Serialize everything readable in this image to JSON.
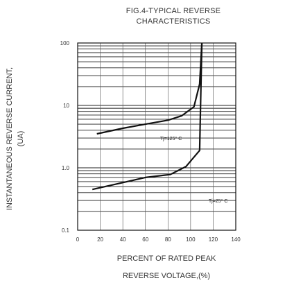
{
  "chart_data": {
    "type": "line",
    "title_line1": "FIG.4-TYPICAL REVERSE",
    "title_line2": "CHARACTERISTICS",
    "xlabel_line1": "PERCENT OF RATED PEAK",
    "xlabel_line2": "REVERSE VOLTAGE,(%)",
    "ylabel_line1": "INSTANTANEOUS REVERSE CURRENT,",
    "ylabel_line2": "(UA)",
    "x_scale": "linear",
    "y_scale": "log",
    "xlim": [
      0,
      140
    ],
    "ylim": [
      0.1,
      100
    ],
    "x_ticks": [
      0,
      20,
      40,
      60,
      80,
      100,
      120,
      140
    ],
    "y_ticks": [
      0.1,
      1.0,
      10,
      100
    ],
    "y_tick_labels": [
      "0.1",
      "1.0",
      "10",
      "100"
    ],
    "grid": true,
    "series": [
      {
        "annotation": "Tj=125° C",
        "x": [
          17,
          40,
          60,
          80,
          92,
          103,
          108,
          110
        ],
        "y": [
          3.5,
          4.3,
          5.0,
          5.8,
          6.8,
          9.5,
          22,
          100
        ]
      },
      {
        "annotation": "Tj=25° C",
        "x": [
          13,
          40,
          60,
          82,
          96,
          108,
          110
        ],
        "y": [
          0.45,
          0.58,
          0.7,
          0.78,
          1.05,
          1.9,
          100
        ]
      }
    ]
  }
}
